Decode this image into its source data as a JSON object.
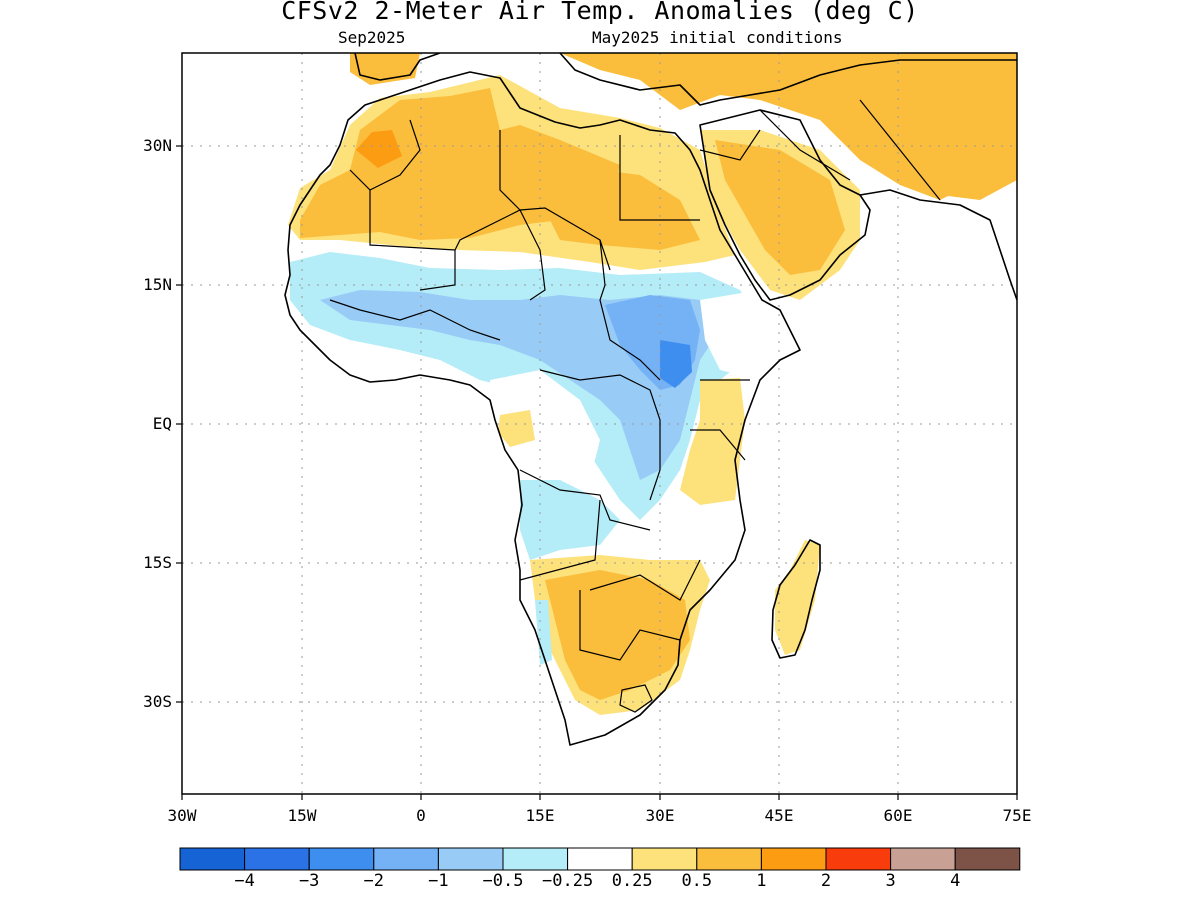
{
  "title": "CFSv2 2-Meter Air Temp. Anomalies (deg C)",
  "subtitle_left": "Sep2025",
  "subtitle_right": "May2025 initial conditions",
  "y_ticks": [
    "30N",
    "15N",
    "EQ",
    "15S",
    "30S"
  ],
  "x_ticks": [
    "30W",
    "15W",
    "0",
    "15E",
    "30E",
    "45E",
    "60E",
    "75E"
  ],
  "colorbar": {
    "colors": [
      "#1663d6",
      "#2a72e6",
      "#3e8ef0",
      "#74b2f5",
      "#98ccf7",
      "#b4ecf7",
      "#ffffff",
      "#fde17a",
      "#fbbd3c",
      "#fb9c12",
      "#f83c0c",
      "#c9a094",
      "#7d5247"
    ],
    "labels": [
      "−4",
      "−3",
      "−2",
      "−1",
      "−0.5",
      "−0.25",
      "0.25",
      "0.5",
      "1",
      "2",
      "3",
      "4"
    ]
  },
  "colors": {
    "warm_light": "#fde17a",
    "warm": "#fbbd3c",
    "warm_strong": "#fb9c12",
    "cool_light": "#b4ecf7",
    "cool": "#98ccf7",
    "cool_mid": "#74b2f5",
    "cool_strong": "#3e8ef0"
  }
}
